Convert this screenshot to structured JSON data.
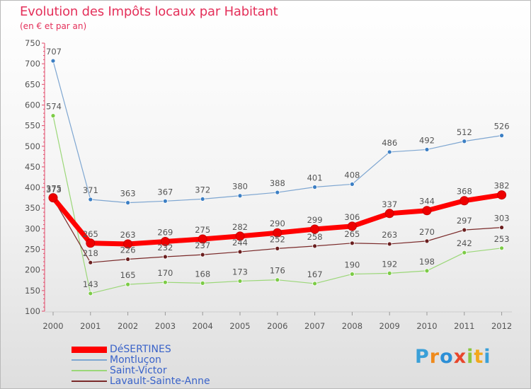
{
  "chart_data": {
    "type": "line",
    "title": "Evolution des Impôts locaux par Habitant",
    "subtitle": "(en € et par an)",
    "x": [
      "2000",
      "2001",
      "2002",
      "2003",
      "2004",
      "2005",
      "2006",
      "2007",
      "2008",
      "2009",
      "2010",
      "2011",
      "2012"
    ],
    "ylim": [
      100,
      750
    ],
    "yticks": [
      100,
      150,
      200,
      250,
      300,
      350,
      400,
      450,
      500,
      550,
      600,
      650,
      700,
      750
    ],
    "grid": false,
    "legend": "bottom-left",
    "series": [
      {
        "name": "Montluçon",
        "color": "#7ea6d1",
        "marker": "#3c7fc4",
        "width": 1.2,
        "values": [
          707,
          371,
          363,
          367,
          372,
          380,
          388,
          401,
          408,
          486,
          492,
          512,
          526
        ]
      },
      {
        "name": "Saint-Victor",
        "color": "#9bd778",
        "marker": "#7ccb46",
        "width": 1.2,
        "values": [
          574,
          143,
          165,
          170,
          168,
          173,
          176,
          167,
          190,
          192,
          198,
          242,
          253
        ]
      },
      {
        "name": "Lavault-Sainte-Anne",
        "color": "#7a2a2a",
        "marker": "#6a1f1f",
        "width": 1.2,
        "values": [
          373,
          218,
          226,
          232,
          237,
          244,
          252,
          258,
          265,
          263,
          270,
          297,
          303
        ]
      },
      {
        "name": "DéSERTINES",
        "color": "#ff0000",
        "marker": "#ee0000",
        "width": 7,
        "values": [
          375,
          265,
          263,
          269,
          275,
          282,
          290,
          299,
          306,
          337,
          344,
          368,
          382
        ]
      }
    ]
  },
  "legend_order": [
    "DéSERTINES",
    "Montluçon",
    "Saint-Victor",
    "Lavault-Sainte-Anne"
  ],
  "legend_colors": {
    "DéSERTINES": "#ff0000",
    "Montluçon": "#7ea6d1",
    "Saint-Victor": "#9bd778",
    "Lavault-Sainte-Anne": "#7a2a2a"
  },
  "logo": {
    "letters": [
      "P",
      "r",
      "o",
      "x",
      "i",
      "t",
      "i"
    ],
    "colors": [
      "#3aa0d8",
      "#ef8a1c",
      "#2c8fd6",
      "#e8462c",
      "#8cc63f",
      "#f2a81c",
      "#3aa0d8"
    ]
  }
}
